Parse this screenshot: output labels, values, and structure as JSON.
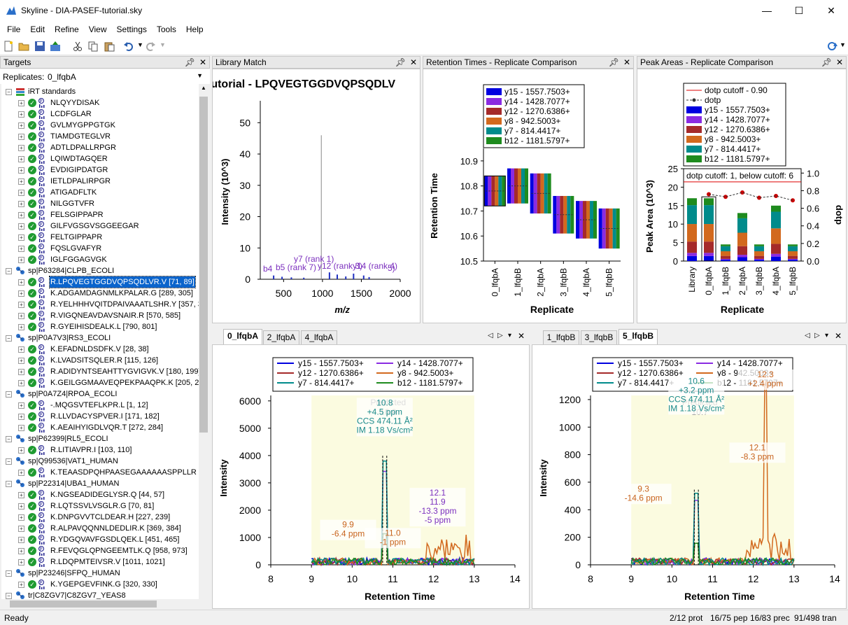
{
  "window": {
    "title": "Skyline - DIA-PASEF-tutorial.sky",
    "min": "—",
    "max": "☐",
    "close": "✕"
  },
  "menu": [
    "File",
    "Edit",
    "Refine",
    "View",
    "Settings",
    "Tools",
    "Help"
  ],
  "targets": {
    "title": "Targets",
    "replicates_label": "Replicates:",
    "replicate_value": "0_lfqbA",
    "rows": [
      {
        "label": "iRT standards",
        "level": 0,
        "kind": "group"
      },
      {
        "label": "NLQYYDISAK",
        "level": 1,
        "kind": "pep"
      },
      {
        "label": "LCDFGLAR",
        "level": 1,
        "kind": "pep"
      },
      {
        "label": "GVLMYGPPGTGK",
        "level": 1,
        "kind": "pep"
      },
      {
        "label": "TIAMDGTEGLVR",
        "level": 1,
        "kind": "pep"
      },
      {
        "label": "ADTLDPALLRPGR",
        "level": 1,
        "kind": "pep"
      },
      {
        "label": "LQIWDTAGQER",
        "level": 1,
        "kind": "pep"
      },
      {
        "label": "EVDIGIPDATGR",
        "level": 1,
        "kind": "pep"
      },
      {
        "label": "IETLDPALIRPGR",
        "level": 1,
        "kind": "pep"
      },
      {
        "label": "ATIGADFLTK",
        "level": 1,
        "kind": "pep"
      },
      {
        "label": "NILGGTVFR",
        "level": 1,
        "kind": "pep"
      },
      {
        "label": "FELSGIPPAPR",
        "level": 1,
        "kind": "pep"
      },
      {
        "label": "GILFVGSGVSGGEEGAR",
        "level": 1,
        "kind": "pep"
      },
      {
        "label": "FELTGIPPAPR",
        "level": 1,
        "kind": "pep"
      },
      {
        "label": "FQSLGVAFYR",
        "level": 1,
        "kind": "pep"
      },
      {
        "label": "IGLFGGAGVGK",
        "level": 1,
        "kind": "pep"
      },
      {
        "label": "sp|P63284|CLPB_ECOLI",
        "level": 0,
        "kind": "prot"
      },
      {
        "label": "R.LPQVEGTGGDVQPSQDLVR.V [71, 89]",
        "level": 1,
        "kind": "pep",
        "selected": true
      },
      {
        "label": "K.ADGAMDAGNMLKPALAR.G [289, 305]",
        "level": 1,
        "kind": "pep"
      },
      {
        "label": "R.YELHHHVQITDPAIVAAATLSHR.Y [357, 379]",
        "level": 1,
        "kind": "pep"
      },
      {
        "label": "R.VIGQNEAVDAVSNAIR.R [570, 585]",
        "level": 1,
        "kind": "pep"
      },
      {
        "label": "R.GYEIHISDEALK.L [790, 801]",
        "level": 1,
        "kind": "pep"
      },
      {
        "label": "sp|P0A7V3|RS3_ECOLI",
        "level": 0,
        "kind": "prot"
      },
      {
        "label": "K.EFADNLDSDFK.V [28, 38]",
        "level": 1,
        "kind": "pep"
      },
      {
        "label": "K.LVADSITSQLER.R [115, 126]",
        "level": 1,
        "kind": "pep"
      },
      {
        "label": "R.ADIDYNTSEAHTTYGVIGVK.V [180, 199]",
        "level": 1,
        "kind": "pep"
      },
      {
        "label": "K.GEILGGMAAVEQPEKPAAQPK.K [205, 225]",
        "level": 1,
        "kind": "pep"
      },
      {
        "label": "sp|P0A7Z4|RPOA_ECOLI",
        "level": 0,
        "kind": "prot"
      },
      {
        "label": "-.MQGSVTEFLKPR.L [1, 12]",
        "level": 1,
        "kind": "pep"
      },
      {
        "label": "R.LLVDACYSPVER.I [171, 182]",
        "level": 1,
        "kind": "pep"
      },
      {
        "label": "K.AEAIHYIGDLVQR.T [272, 284]",
        "level": 1,
        "kind": "pep"
      },
      {
        "label": "sp|P62399|RL5_ECOLI",
        "level": 0,
        "kind": "prot"
      },
      {
        "label": "R.LITIAVPR.I [103, 110]",
        "level": 1,
        "kind": "pep"
      },
      {
        "label": "sp|Q99536|VAT1_HUMAN",
        "level": 0,
        "kind": "prot"
      },
      {
        "label": "K.TEAASDPQHPAASEGAAAAAASPPLLR",
        "level": 1,
        "kind": "pep"
      },
      {
        "label": "sp|P22314|UBA1_HUMAN",
        "level": 0,
        "kind": "prot"
      },
      {
        "label": "K.NGSEADIDEGLYSR.Q [44, 57]",
        "level": 1,
        "kind": "pep"
      },
      {
        "label": "R.LQTSSVLVSGLR.G [70, 81]",
        "level": 1,
        "kind": "pep"
      },
      {
        "label": "K.DNPGVVTCLDEAR.H [227, 239]",
        "level": 1,
        "kind": "pep"
      },
      {
        "label": "R.ALPAVQQNNLDEDLIR.K [369, 384]",
        "level": 1,
        "kind": "pep"
      },
      {
        "label": "R.YDGQVAVFGSDLQEK.L [451, 465]",
        "level": 1,
        "kind": "pep"
      },
      {
        "label": "R.FEVQGLQPNGEEMTLK.Q [958, 973]",
        "level": 1,
        "kind": "pep"
      },
      {
        "label": "R.LDQPMTEIVSR.V [1011, 1021]",
        "level": 1,
        "kind": "pep"
      },
      {
        "label": "sp|P23246|SFPQ_HUMAN",
        "level": 0,
        "kind": "prot"
      },
      {
        "label": "K.YGEPGEVFINK.G [320, 330]",
        "level": 1,
        "kind": "pep"
      },
      {
        "label": "tr|C8ZGV7|C8ZGV7_YEAS8",
        "level": 0,
        "kind": "prot"
      }
    ]
  },
  "library_match": {
    "title": "Library Match",
    "plot_title": "tutorial - LPQVEGTGGDVQPSQDLV",
    "chart_data": {
      "type": "bar",
      "xlabel": "m/z",
      "ylabel": "Intensity (10^3)",
      "xlim": [
        200,
        2000
      ],
      "ylim": [
        0,
        57
      ],
      "xticks": [
        500,
        1000,
        1500,
        2000
      ],
      "yticks": [
        0,
        10,
        20,
        30,
        40,
        50
      ],
      "peaks": [
        [
          372,
          1.2
        ],
        [
          480,
          0.8
        ],
        [
          600,
          0.6
        ],
        [
          760,
          0.5
        ],
        [
          985,
          46
        ],
        [
          1090,
          2.2
        ],
        [
          1190,
          1.5
        ],
        [
          1300,
          0.9
        ],
        [
          1400,
          1.8
        ],
        [
          1530,
          1.2
        ],
        [
          1600,
          0.7
        ]
      ],
      "annotations": [
        "y7 (rank 1)",
        "b4",
        "b5 (rank 7)",
        "y12 (rank 3)",
        "y14 (rank 4)",
        "5)"
      ]
    }
  },
  "rt_comparison": {
    "title": "Retention Times - Replicate Comparison",
    "chart_data": {
      "type": "bar",
      "xlabel": "Replicate",
      "ylabel": "Retention Time",
      "ylim": [
        10.5,
        10.95
      ],
      "yticks": [
        10.5,
        10.6,
        10.7,
        10.8,
        10.9
      ],
      "categories": [
        "0_lfqbA",
        "1_lfqbB",
        "2_lfqbA",
        "3_lfqbB",
        "4_lfqbA",
        "5_lfqbB"
      ],
      "ranges": [
        [
          10.72,
          10.84
        ],
        [
          10.73,
          10.87
        ],
        [
          10.69,
          10.85
        ],
        [
          10.61,
          10.76
        ],
        [
          10.59,
          10.74
        ],
        [
          10.55,
          10.71
        ]
      ],
      "legend": [
        "y15 - 1557.7503+",
        "y14 - 1428.7077+",
        "y12 - 1270.6386+",
        "y8 - 942.5003+",
        "y7 - 814.4417+",
        "b12 - 1181.5797+"
      ]
    }
  },
  "peak_areas": {
    "title": "Peak Areas - Replicate Comparison",
    "chart_data": {
      "type": "bar",
      "xlabel": "Replicate",
      "ylabel": "Peak Area (10^3)",
      "y2label": "dotp",
      "ylim": [
        0,
        25
      ],
      "y2lim": [
        0,
        1.05
      ],
      "yticks": [
        0,
        5,
        10,
        15,
        20,
        25
      ],
      "y2ticks": [
        0.0,
        0.2,
        0.4,
        0.6,
        0.8,
        1.0
      ],
      "categories": [
        "Library",
        "0_lfqbA",
        "1_lfqbB",
        "2_lfqbA",
        "3_lfqbB",
        "4_lfqbA",
        "5_lfqbB"
      ],
      "totals": [
        17,
        17,
        4.5,
        13,
        4.5,
        15,
        4.5
      ],
      "dotp": [
        null,
        0.76,
        0.73,
        0.78,
        0.72,
        0.74,
        0.69
      ],
      "cutoff": 0.9,
      "note": "dotp cutoff: 1, below cutoff: 6",
      "legend": [
        "dotp cutoff - 0.90",
        "dotp",
        "y15 - 1557.7503+",
        "y14 - 1428.7077+",
        "y12 - 1270.6386+",
        "y8 - 942.5003+",
        "y7 - 814.4417+",
        "b12 - 1181.5797+"
      ]
    }
  },
  "chrom_left": {
    "tabs": [
      "0_lfqbA",
      "2_lfqbA",
      "4_lfqbA"
    ],
    "chart_data": {
      "type": "line",
      "xlabel": "Retention Time",
      "ylabel": "Intensity",
      "xlim": [
        8,
        14
      ],
      "ylim": [
        0,
        6200
      ],
      "xticks": [
        8,
        9,
        10,
        11,
        12,
        13,
        14
      ],
      "yticks": [
        0,
        1000,
        2000,
        3000,
        4000,
        5000,
        6000
      ],
      "predicted": "Predicted\n10.9",
      "labels": [
        {
          "x": 10.8,
          "y": 4500,
          "text": "10.8\n+4.5 ppm\nCCS 474.11 Å²\nIM 1.18 Vs/cm²",
          "color": "#1a8a8a"
        },
        {
          "x": 9.9,
          "y": 700,
          "text": "9.9\n-6.4 ppm",
          "color": "#c8641e"
        },
        {
          "x": 11.0,
          "y": 400,
          "text": "11.0\n-1 ppm",
          "color": "#c8641e"
        },
        {
          "x": 12.1,
          "y": 1200,
          "text": "12.1\n11.9\n-13.3 ppm\n-5 ppm",
          "color": "#7b2fbe"
        }
      ]
    }
  },
  "chrom_right": {
    "tabs": [
      "1_lfqbB",
      "3_lfqbB",
      "5_lfqbB"
    ],
    "chart_data": {
      "type": "line",
      "xlabel": "Retention Time",
      "ylabel": "Intensity",
      "xlim": [
        8,
        14
      ],
      "ylim": [
        0,
        1230
      ],
      "xticks": [
        8,
        9,
        10,
        11,
        12,
        13,
        14
      ],
      "yticks": [
        0,
        200,
        400,
        600,
        800,
        1000,
        1200
      ],
      "predicted": "Predicted\n10.7",
      "labels": [
        {
          "x": 10.6,
          "y": 1050,
          "text": "10.6\n+3.2 ppm\nCCS 474.11 Å²\nIM 1.18 Vs/cm²",
          "color": "#1a8a8a"
        },
        {
          "x": 12.3,
          "y": 1230,
          "text": "12.3\n+2.4 ppm",
          "color": "#c8641e"
        },
        {
          "x": 9.3,
          "y": 400,
          "text": "9.3\n-14.6 ppm",
          "color": "#c8641e"
        },
        {
          "x": 12.1,
          "y": 700,
          "text": "12.1\n-8.3 ppm",
          "color": "#c8641e"
        }
      ]
    }
  },
  "chrom_legend": [
    "y15 - 1557.7503+",
    "y14 - 1428.7077+",
    "y12 - 1270.6386+",
    "y8 - 942.5003+",
    "y7 - 814.4417+",
    "b12 - 1181.5797+"
  ],
  "colors": {
    "y15": "#0000e0",
    "y14": "#8a2be2",
    "y12": "#a52a2a",
    "y8": "#d2691e",
    "y7": "#008b8b",
    "b12": "#1e8b1e",
    "plotbg": "#fbfbe0"
  },
  "status": {
    "ready": "Ready",
    "prot": "2/12 prot",
    "pep": "16/75 pep",
    "prec": "16/83 prec",
    "tran": "91/498 tran"
  }
}
